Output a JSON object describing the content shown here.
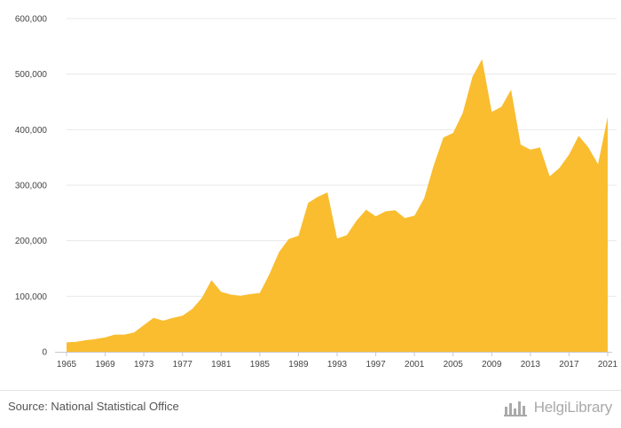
{
  "chart_data": {
    "type": "area",
    "title": "",
    "xlabel": "",
    "ylabel": "",
    "x": [
      1965,
      1966,
      1967,
      1968,
      1969,
      1970,
      1971,
      1972,
      1973,
      1974,
      1975,
      1976,
      1977,
      1978,
      1979,
      1980,
      1981,
      1982,
      1983,
      1984,
      1985,
      1986,
      1987,
      1988,
      1989,
      1990,
      1991,
      1992,
      1993,
      1994,
      1995,
      1996,
      1997,
      1998,
      1999,
      2000,
      2001,
      2002,
      2003,
      2004,
      2005,
      2006,
      2007,
      2008,
      2009,
      2010,
      2011,
      2012,
      2013,
      2014,
      2015,
      2016,
      2017,
      2018,
      2019,
      2020,
      2021
    ],
    "values": [
      17000,
      18000,
      21000,
      23000,
      26000,
      31000,
      31000,
      35000,
      48000,
      61000,
      56000,
      61000,
      65000,
      77000,
      97000,
      129000,
      108000,
      103000,
      101000,
      104000,
      106000,
      140000,
      180000,
      203000,
      209000,
      268000,
      279000,
      287000,
      204000,
      210000,
      236000,
      256000,
      244000,
      253000,
      255000,
      241000,
      245000,
      276000,
      336000,
      386000,
      394000,
      430000,
      495000,
      527000,
      432000,
      441000,
      472000,
      373000,
      364000,
      368000,
      316000,
      331000,
      355000,
      389000,
      368000,
      338000,
      423000
    ],
    "x_ticks": [
      "1965",
      "1969",
      "1973",
      "1977",
      "1981",
      "1985",
      "1989",
      "1993",
      "1997",
      "2001",
      "2005",
      "2009",
      "2013",
      "2017",
      "2021"
    ],
    "y_ticks": [
      "0",
      "100,000",
      "200,000",
      "300,000",
      "400,000",
      "500,000",
      "600,000"
    ],
    "ylim": [
      0,
      600000
    ],
    "xlim": [
      1965,
      2021
    ],
    "grid": "horizontal",
    "color": "#f9bd2f"
  },
  "footer": {
    "source": "Source: National Statistical Office",
    "brand": "HelgiLibrary",
    "brand_icon": "helgi-logo-icon"
  }
}
